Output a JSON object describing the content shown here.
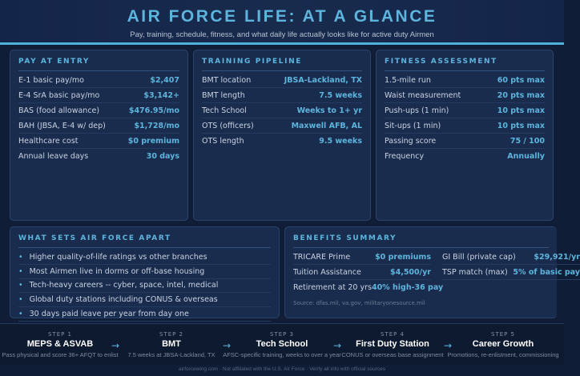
{
  "header": {
    "title": "AIR FORCE LIFE: AT A GLANCE",
    "subtitle": "Pay, training, schedule, fitness, and what daily life actually looks like for active duty Airmen"
  },
  "pay": {
    "title": "PAY AT ENTRY",
    "rows": [
      [
        "E-1 basic pay/mo",
        "$2,407"
      ],
      [
        "E-4 SrA basic pay/mo",
        "$3,142+"
      ],
      [
        "BAS (food allowance)",
        "$476.95/mo"
      ],
      [
        "BAH (JBSA, E-4 w/ dep)",
        "$1,728/mo"
      ],
      [
        "Healthcare cost",
        "$0 premium"
      ],
      [
        "Annual leave days",
        "30 days"
      ]
    ]
  },
  "training": {
    "title": "TRAINING PIPELINE",
    "rows": [
      [
        "BMT location",
        "JBSA-Lackland, TX"
      ],
      [
        "BMT length",
        "7.5 weeks"
      ],
      [
        "Tech School",
        "Weeks to 1+ yr"
      ],
      [
        "OTS (officers)",
        "Maxwell AFB, AL"
      ],
      [
        "OTS length",
        "9.5 weeks"
      ]
    ]
  },
  "fitness": {
    "title": "FITNESS ASSESSMENT",
    "rows": [
      [
        "1.5-mile run",
        "60 pts max"
      ],
      [
        "Waist measurement",
        "20 pts max"
      ],
      [
        "Push-ups (1 min)",
        "10 pts max"
      ],
      [
        "Sit-ups (1 min)",
        "10 pts max"
      ],
      [
        "Passing score",
        "75 / 100"
      ],
      [
        "Frequency",
        "Annually"
      ]
    ]
  },
  "apart": {
    "title": "WHAT SETS AIR FORCE APART",
    "items": [
      "Higher quality-of-life ratings vs other branches",
      "Most Airmen live in dorms or off-base housing",
      "Tech-heavy careers -- cyber, space, intel, medical",
      "Global duty stations including CONUS & overseas",
      "30 days paid leave per year from day one"
    ]
  },
  "benefits": {
    "title": "BENEFITS SUMMARY",
    "rows": [
      [
        "TRICARE Prime",
        "$0 premiums"
      ],
      [
        "GI Bill (private cap)",
        "$29,921/yr"
      ],
      [
        "Tuition Assistance",
        "$4,500/yr"
      ],
      [
        "TSP match (max)",
        "5% of basic pay"
      ],
      [
        "Retirement at 20 yrs",
        "40% high-36 pay"
      ]
    ],
    "source": "Source: dfas.mil, va.gov, militaryonesource.mil"
  },
  "steps": [
    {
      "n": "STEP 1",
      "t": "MEPS & ASVAB",
      "d": "Pass physical and score 36+ AFQT to enlist"
    },
    {
      "n": "STEP 2",
      "t": "BMT",
      "d": "7.5 weeks at JBSA-Lackland, TX"
    },
    {
      "n": "STEP 3",
      "t": "Tech School",
      "d": "AFSC-specific training, weeks to over a year"
    },
    {
      "n": "STEP 4",
      "t": "First Duty Station",
      "d": "CONUS or overseas base assignment"
    },
    {
      "n": "STEP 5",
      "t": "Career Growth",
      "d": "Promotions, re-enlistment, commissioning"
    }
  ],
  "arrow": "→",
  "footer": "airforcewing.com · Not affiliated with the U.S. Air Force · Verify all info with official sources"
}
